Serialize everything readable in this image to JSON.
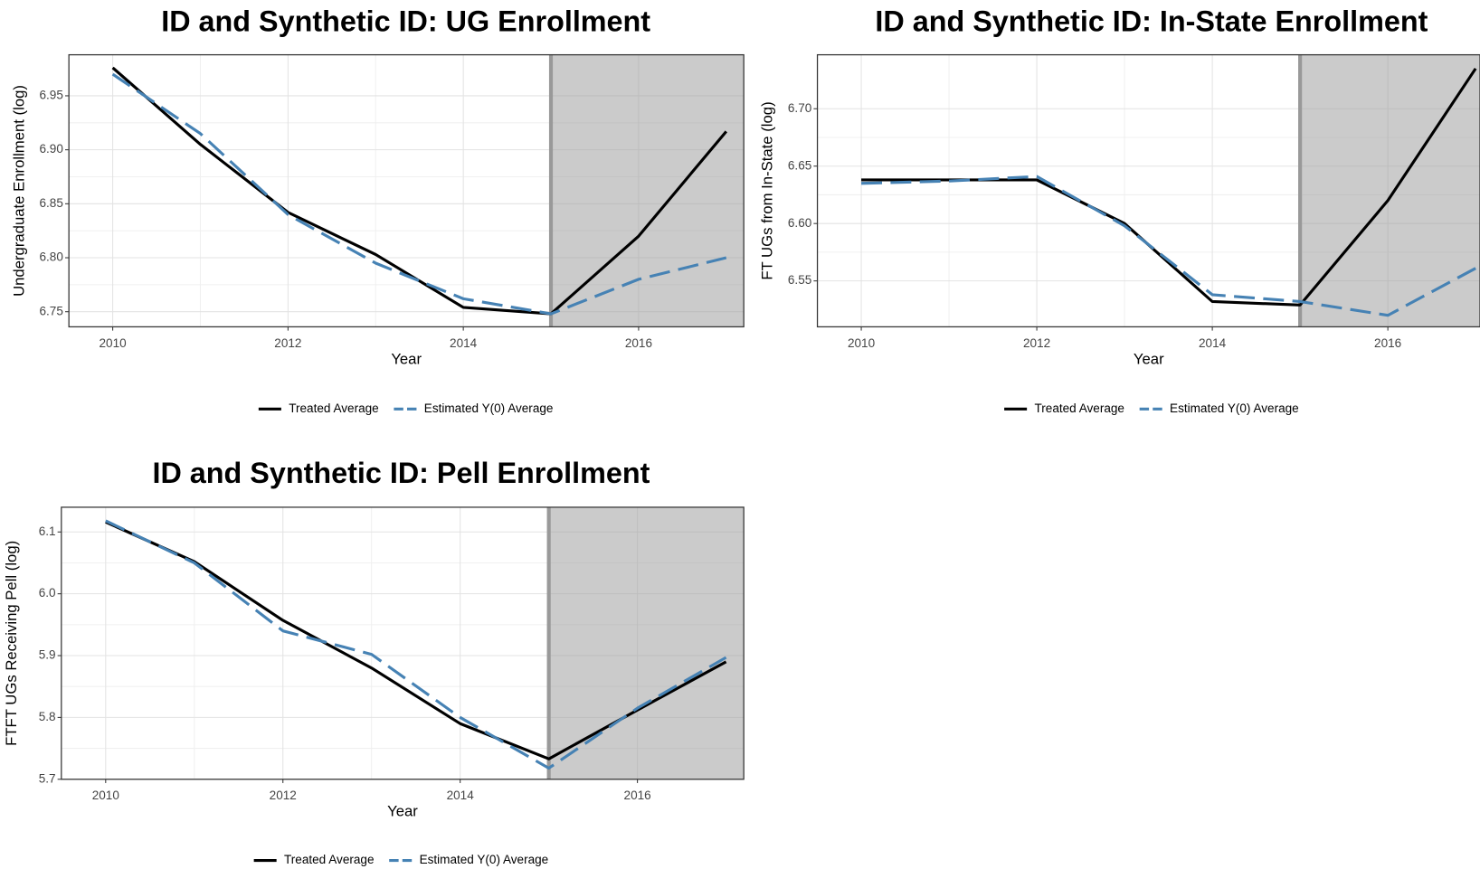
{
  "chart_data": [
    {
      "type": "line",
      "title": "ID and Synthetic ID: UG Enrollment",
      "xlabel": "Year",
      "ylabel": "Undergraduate Enrollment (log)",
      "x": [
        2010,
        2011,
        2012,
        2013,
        2014,
        2015,
        2016,
        2017
      ],
      "series": [
        {
          "name": "Treated Average",
          "color": "#000000",
          "dash": false,
          "values": [
            6.976,
            6.905,
            6.842,
            6.803,
            6.754,
            6.748,
            6.82,
            6.917
          ]
        },
        {
          "name": "Estimated Y(0) Average",
          "color": "#4682b4",
          "dash": true,
          "values": [
            6.97,
            6.915,
            6.84,
            6.795,
            6.762,
            6.748,
            6.78,
            6.8
          ]
        }
      ],
      "xlim": [
        2009.5,
        2017.2
      ],
      "xticks": [
        2010,
        2012,
        2014,
        2016
      ],
      "ylim": [
        6.736,
        6.988
      ],
      "yticks": [
        6.75,
        {
          "value": 6.8,
          "label": "6.80"
        },
        6.85,
        {
          "value": 6.9,
          "label": "6.90"
        },
        6.95
      ],
      "shade_from": 2015,
      "grid": true,
      "legend": "bottom"
    },
    {
      "type": "line",
      "title": "ID and Synthetic ID: In-State Enrollment",
      "xlabel": "Year",
      "ylabel": "FT UGs from In-State (log)",
      "x": [
        2010,
        2011,
        2012,
        2013,
        2014,
        2015,
        2016,
        2017
      ],
      "series": [
        {
          "name": "Treated Average",
          "color": "#000000",
          "dash": false,
          "values": [
            6.638,
            6.638,
            6.638,
            6.6,
            6.532,
            6.529,
            6.62,
            6.735
          ]
        },
        {
          "name": "Estimated Y(0) Average",
          "color": "#4682b4",
          "dash": true,
          "values": [
            6.635,
            6.637,
            6.641,
            6.598,
            6.538,
            6.532,
            6.52,
            6.561
          ]
        }
      ],
      "xlim": [
        2009.5,
        2017.05
      ],
      "xticks": [
        2010,
        2012,
        2014,
        2016
      ],
      "ylim": [
        6.51,
        6.747
      ],
      "yticks": [
        6.55,
        {
          "value": 6.6,
          "label": "6.60"
        },
        6.65,
        {
          "value": 6.7,
          "label": "6.70"
        }
      ],
      "shade_from": 2015,
      "grid": true,
      "legend": "bottom"
    },
    {
      "type": "line",
      "title": "ID and Synthetic ID: Pell Enrollment",
      "xlabel": "Year",
      "ylabel": "FTFT UGs Receiving Pell (log)",
      "x": [
        2010,
        2011,
        2012,
        2013,
        2014,
        2015,
        2016,
        2017
      ],
      "series": [
        {
          "name": "Treated Average",
          "color": "#000000",
          "dash": false,
          "values": [
            6.116,
            6.052,
            5.957,
            5.88,
            5.79,
            5.733,
            5.812,
            5.89
          ]
        },
        {
          "name": "Estimated Y(0) Average",
          "color": "#4682b4",
          "dash": true,
          "values": [
            6.118,
            6.05,
            5.94,
            5.902,
            5.8,
            5.718,
            5.815,
            5.897
          ]
        }
      ],
      "xlim": [
        2009.5,
        2017.2
      ],
      "xticks": [
        2010,
        2012,
        2014,
        2016
      ],
      "ylim": [
        5.7,
        6.14
      ],
      "yticks": [
        5.7,
        5.8,
        5.9,
        {
          "value": 6.0,
          "label": "6.0"
        },
        6.1
      ],
      "shade_from": 2015,
      "grid": true,
      "legend": "bottom"
    }
  ]
}
